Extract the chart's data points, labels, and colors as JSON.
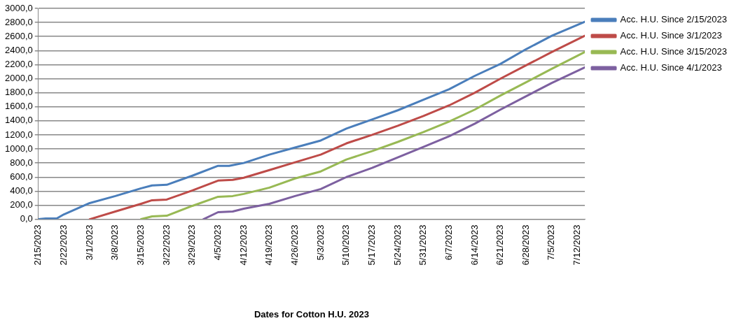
{
  "chart_data": {
    "type": "line",
    "xlabel": "Dates for Cotton H.U. 2023",
    "xlim": [
      "2023-02-15",
      "2023-07-14"
    ],
    "xticks": [
      {
        "value": "2023-02-15",
        "label": "2/15/2023"
      },
      {
        "value": "2023-02-22",
        "label": "2/22/2023"
      },
      {
        "value": "2023-03-01",
        "label": "3/1/2023"
      },
      {
        "value": "2023-03-08",
        "label": "3/8/2023"
      },
      {
        "value": "2023-03-15",
        "label": "3/15/2023"
      },
      {
        "value": "2023-03-22",
        "label": "3/22/2023"
      },
      {
        "value": "2023-03-29",
        "label": "3/29/2023"
      },
      {
        "value": "2023-04-05",
        "label": "4/5/2023"
      },
      {
        "value": "2023-04-12",
        "label": "4/12/2023"
      },
      {
        "value": "2023-04-19",
        "label": "4/19/2023"
      },
      {
        "value": "2023-04-26",
        "label": "4/26/2023"
      },
      {
        "value": "2023-05-03",
        "label": "5/3/2023"
      },
      {
        "value": "2023-05-10",
        "label": "5/10/2023"
      },
      {
        "value": "2023-05-17",
        "label": "5/17/2023"
      },
      {
        "value": "2023-05-24",
        "label": "5/24/2023"
      },
      {
        "value": "2023-05-31",
        "label": "5/31/2023"
      },
      {
        "value": "2023-06-07",
        "label": "6/7/2023"
      },
      {
        "value": "2023-06-14",
        "label": "6/14/2023"
      },
      {
        "value": "2023-06-21",
        "label": "6/21/2023"
      },
      {
        "value": "2023-06-28",
        "label": "6/28/2023"
      },
      {
        "value": "2023-07-05",
        "label": "7/5/2023"
      },
      {
        "value": "2023-07-12",
        "label": "7/12/2023"
      }
    ],
    "ylim": [
      0,
      3000
    ],
    "yticks": [
      {
        "value": 0,
        "label": "0,0"
      },
      {
        "value": 200,
        "label": "200,0"
      },
      {
        "value": 400,
        "label": "400,0"
      },
      {
        "value": 600,
        "label": "600,0"
      },
      {
        "value": 800,
        "label": "800,0"
      },
      {
        "value": 1000,
        "label": "1000,0"
      },
      {
        "value": 1200,
        "label": "1200,0"
      },
      {
        "value": 1400,
        "label": "1400,0"
      },
      {
        "value": 1600,
        "label": "1600,0"
      },
      {
        "value": 1800,
        "label": "1800,0"
      },
      {
        "value": 2000,
        "label": "2000,0"
      },
      {
        "value": 2200,
        "label": "2200,0"
      },
      {
        "value": 2400,
        "label": "2400,0"
      },
      {
        "value": 2600,
        "label": "2600,0"
      },
      {
        "value": 2800,
        "label": "2800,0"
      },
      {
        "value": 3000,
        "label": "3000,0"
      }
    ],
    "grid": "y",
    "legend": "right",
    "marker": "none",
    "line_style": "solid",
    "series": [
      {
        "name": "Acc. H.U. Since 2/15/2023",
        "color": "#4a7ebb",
        "x": [
          "2023-02-15",
          "2023-02-17",
          "2023-02-20",
          "2023-02-22",
          "2023-03-01",
          "2023-03-08",
          "2023-03-15",
          "2023-03-18",
          "2023-03-22",
          "2023-03-29",
          "2023-04-05",
          "2023-04-08",
          "2023-04-12",
          "2023-04-19",
          "2023-04-26",
          "2023-05-03",
          "2023-05-10",
          "2023-05-17",
          "2023-05-24",
          "2023-05-31",
          "2023-06-07",
          "2023-06-14",
          "2023-06-21",
          "2023-06-28",
          "2023-07-05",
          "2023-07-14"
        ],
        "values": [
          0,
          10,
          10,
          70,
          230,
          330,
          440,
          480,
          490,
          620,
          760,
          760,
          800,
          920,
          1020,
          1120,
          1290,
          1420,
          1550,
          1700,
          1850,
          2040,
          2210,
          2420,
          2610,
          2810
        ]
      },
      {
        "name": "Acc. H.U. Since 3/1/2023",
        "color": "#be4b48",
        "x": [
          "2023-03-01",
          "2023-03-08",
          "2023-03-15",
          "2023-03-18",
          "2023-03-22",
          "2023-03-29",
          "2023-04-05",
          "2023-04-09",
          "2023-04-12",
          "2023-04-19",
          "2023-04-26",
          "2023-05-03",
          "2023-05-10",
          "2023-05-17",
          "2023-05-24",
          "2023-05-31",
          "2023-06-07",
          "2023-06-14",
          "2023-06-21",
          "2023-06-28",
          "2023-07-05",
          "2023-07-14"
        ],
        "values": [
          0,
          110,
          220,
          270,
          280,
          410,
          550,
          560,
          590,
          700,
          810,
          920,
          1080,
          1200,
          1330,
          1470,
          1620,
          1800,
          2000,
          2190,
          2380,
          2610
        ]
      },
      {
        "name": "Acc. H.U. Since 3/15/2023",
        "color": "#98b954",
        "x": [
          "2023-03-15",
          "2023-03-18",
          "2023-03-22",
          "2023-03-29",
          "2023-04-05",
          "2023-04-09",
          "2023-04-12",
          "2023-04-19",
          "2023-04-26",
          "2023-05-03",
          "2023-05-10",
          "2023-05-17",
          "2023-05-24",
          "2023-05-31",
          "2023-06-07",
          "2023-06-14",
          "2023-06-21",
          "2023-06-28",
          "2023-07-05",
          "2023-07-14"
        ],
        "values": [
          0,
          40,
          50,
          190,
          320,
          330,
          360,
          450,
          580,
          680,
          850,
          970,
          1100,
          1240,
          1390,
          1560,
          1760,
          1950,
          2140,
          2380
        ]
      },
      {
        "name": "Acc. H.U. Since 4/1/2023",
        "color": "#7d60a0",
        "x": [
          "2023-04-01",
          "2023-04-05",
          "2023-04-09",
          "2023-04-12",
          "2023-04-19",
          "2023-04-26",
          "2023-05-03",
          "2023-05-10",
          "2023-05-17",
          "2023-05-24",
          "2023-05-31",
          "2023-06-07",
          "2023-06-14",
          "2023-06-21",
          "2023-06-28",
          "2023-07-05",
          "2023-07-14"
        ],
        "values": [
          0,
          100,
          110,
          150,
          220,
          330,
          430,
          600,
          730,
          880,
          1030,
          1180,
          1360,
          1560,
          1750,
          1940,
          2160
        ]
      }
    ]
  }
}
